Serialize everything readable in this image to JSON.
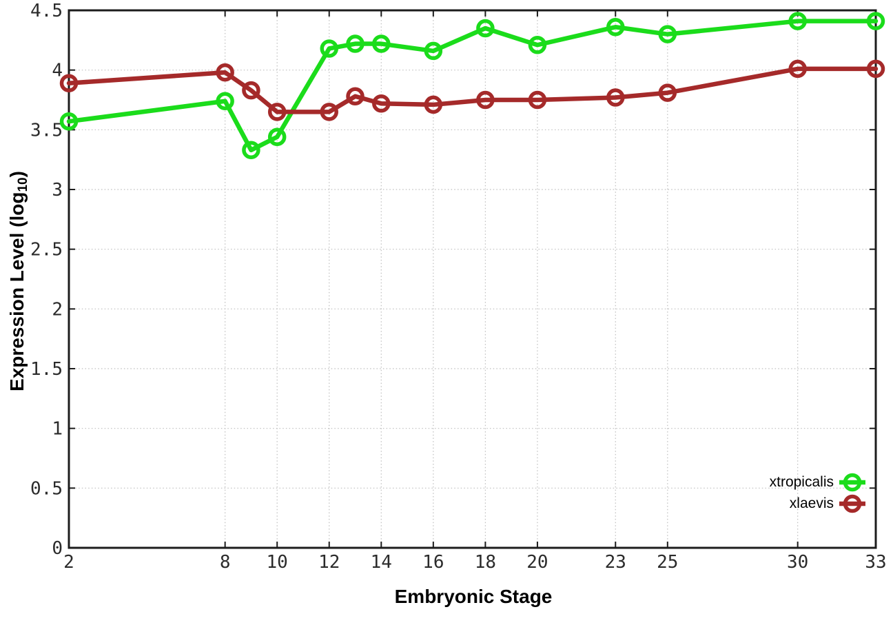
{
  "chart_data": {
    "type": "line",
    "title": "",
    "xlabel": "Embryonic Stage",
    "ylabel": "Expression Level (log10)",
    "ylabel_parts": {
      "main": "Expression Level (log",
      "sub": "10",
      "close": ")"
    },
    "x": [
      2,
      8,
      9,
      10,
      12,
      13,
      14,
      16,
      18,
      20,
      23,
      25,
      30,
      33
    ],
    "series": [
      {
        "name": "xtropicalis",
        "color": "#1bdc1b",
        "values": [
          3.57,
          3.74,
          3.33,
          3.44,
          4.18,
          4.22,
          4.22,
          4.16,
          4.35,
          4.21,
          4.36,
          4.3,
          4.41,
          4.41
        ]
      },
      {
        "name": "xlaevis",
        "color": "#a52a2a",
        "values": [
          3.89,
          3.98,
          3.83,
          3.65,
          3.65,
          3.78,
          3.72,
          3.71,
          3.75,
          3.75,
          3.77,
          3.81,
          4.01,
          4.01
        ]
      }
    ],
    "xlim": [
      2,
      33
    ],
    "ylim": [
      0,
      4.5
    ],
    "x_ticks": [
      {
        "value": 2,
        "label": "2"
      },
      {
        "value": 8,
        "label": "8"
      },
      {
        "value": 10,
        "label": "10"
      },
      {
        "value": 12,
        "label": "12"
      },
      {
        "value": 14,
        "label": "14"
      },
      {
        "value": 16,
        "label": "16"
      },
      {
        "value": 18,
        "label": "18"
      },
      {
        "value": 20,
        "label": "20"
      },
      {
        "value": 23,
        "label": "23"
      },
      {
        "value": 25,
        "label": "25"
      },
      {
        "value": 30,
        "label": "30"
      },
      {
        "value": 33,
        "label": "33"
      }
    ],
    "y_ticks": [
      {
        "value": 0,
        "label": "0"
      },
      {
        "value": 0.5,
        "label": "0.5"
      },
      {
        "value": 1,
        "label": "1"
      },
      {
        "value": 1.5,
        "label": "1.5"
      },
      {
        "value": 2,
        "label": "2"
      },
      {
        "value": 2.5,
        "label": "2.5"
      },
      {
        "value": 3,
        "label": "3"
      },
      {
        "value": 3.5,
        "label": "3.5"
      },
      {
        "value": 4,
        "label": "4"
      },
      {
        "value": 4.5,
        "label": "4.5"
      }
    ],
    "grid": true,
    "legend_position": "inside-bottom-right",
    "marker": "open-circle"
  },
  "colors": {
    "background": "#ffffff",
    "plot_border": "#1c1c1c",
    "grid": "#bdbdbd",
    "tick_text": "#2b2b2b"
  }
}
